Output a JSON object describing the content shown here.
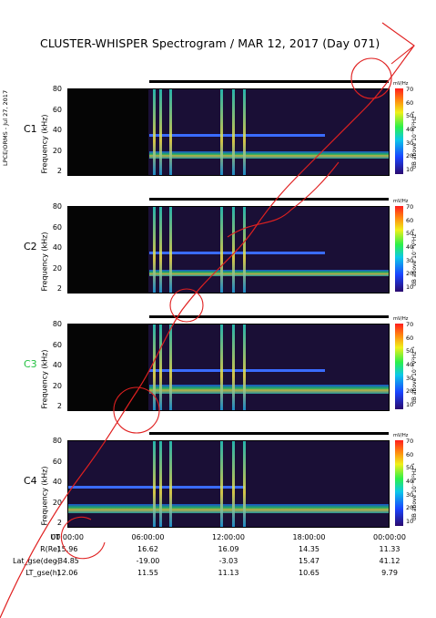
{
  "title": "CLUSTER-WHISPER Spectrogram / MAR 12, 2017 (Day 071)",
  "side_label": "LPCE/ORMS - Jul 27, 2017",
  "panels": [
    {
      "label": "C1",
      "label_color": "#000000"
    },
    {
      "label": "C2",
      "label_color": "#000000"
    },
    {
      "label": "C3",
      "label_color": "#22c040"
    },
    {
      "label": "C4",
      "label_color": "#000000"
    }
  ],
  "y_axis_label": "Frequency (kHz)",
  "y_ticks": [
    "80",
    "60",
    "40",
    "20",
    "2"
  ],
  "colorbar_ticks": [
    "70",
    "60",
    "50",
    "40",
    "30",
    "20",
    "10"
  ],
  "colorbar_label": "dB above 10⁻⁸V²Hz⁻¹",
  "colorbar_unit": "mV/Hz",
  "x_ticks": [
    "00:00:00",
    "06:00:00",
    "12:00:00",
    "18:00:00",
    "00:00:00"
  ],
  "ephemeris": [
    {
      "label": "UT",
      "values": [
        "",
        "",
        "",
        "",
        ""
      ]
    },
    {
      "label": "R(Re)",
      "values": [
        "15.96",
        "16.62",
        "16.09",
        "14.35",
        "11.33"
      ]
    },
    {
      "label": "Lat_gse(deg)",
      "values": [
        "-34.85",
        "-19.00",
        "-3.03",
        "15.47",
        "41.12"
      ]
    },
    {
      "label": "LT_gse(h)",
      "values": [
        "12.06",
        "11.55",
        "11.13",
        "10.65",
        "9.79"
      ]
    }
  ],
  "chart_data": {
    "type": "heatmap",
    "title": "CLUSTER-WHISPER Spectrogram / MAR 12, 2017 (Day 071)",
    "xlabel": "UT",
    "ylabel": "Frequency (kHz)",
    "ylim": [
      2,
      80
    ],
    "color_scale": [
      10,
      70
    ],
    "color_label": "dB above 10⁻⁸V²Hz⁻¹",
    "x_categories": [
      "00:00:00",
      "06:00:00",
      "12:00:00",
      "18:00:00",
      "00:00:00"
    ],
    "series": [
      {
        "name": "C1",
        "data_start_ut_h": 6.0,
        "emission_band_khz": [
          18,
          25
        ]
      },
      {
        "name": "C2",
        "data_start_ut_h": 6.0,
        "emission_band_khz": [
          18,
          24
        ]
      },
      {
        "name": "C3",
        "data_start_ut_h": 6.0,
        "emission_band_khz": [
          18,
          26
        ]
      },
      {
        "name": "C4",
        "data_start_ut_h": 0.0,
        "emission_band_khz": [
          16,
          24
        ]
      }
    ]
  }
}
